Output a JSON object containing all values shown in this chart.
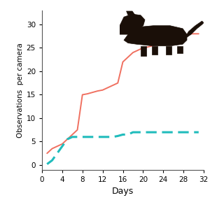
{
  "red_line": {
    "x": [
      1,
      2,
      3,
      4,
      5,
      6,
      7,
      8,
      9,
      10,
      11,
      12,
      13,
      14,
      15,
      16,
      17,
      18,
      19,
      20,
      21,
      22,
      23,
      24,
      25,
      26,
      27,
      28,
      29,
      30,
      31
    ],
    "y": [
      2.5,
      3.5,
      4.0,
      4.5,
      5.5,
      6.5,
      7.5,
      15.0,
      15.2,
      15.5,
      15.8,
      16.0,
      16.5,
      17.0,
      17.5,
      22.0,
      23.0,
      24.0,
      24.5,
      25.0,
      25.2,
      25.5,
      25.8,
      26.0,
      26.5,
      27.0,
      27.2,
      27.5,
      28.0,
      28.0,
      28.0
    ]
  },
  "cyan_line": {
    "x": [
      1,
      2,
      3,
      4,
      5,
      6,
      7,
      8,
      9,
      10,
      11,
      12,
      13,
      14,
      15,
      16,
      17,
      18,
      19,
      20,
      21,
      22,
      23,
      24,
      25,
      26,
      27,
      28,
      29,
      30,
      31
    ],
    "y": [
      0.2,
      1.0,
      2.5,
      4.0,
      5.5,
      6.0,
      6.0,
      6.0,
      6.0,
      6.0,
      6.0,
      6.0,
      6.0,
      6.0,
      6.2,
      6.5,
      6.5,
      7.0,
      7.0,
      7.0,
      7.0,
      7.0,
      7.0,
      7.0,
      7.0,
      7.0,
      7.0,
      7.0,
      7.0,
      7.0,
      7.0
    ]
  },
  "red_color": "#F07060",
  "cyan_color": "#20BCBC",
  "xlabel": "Days",
  "ylabel": "Observations  per camera",
  "xlim": [
    0,
    32
  ],
  "ylim": [
    -1,
    33
  ],
  "xticks": [
    0,
    4,
    8,
    12,
    16,
    20,
    24,
    28,
    32
  ],
  "yticks": [
    0,
    5,
    10,
    15,
    20,
    25,
    30
  ],
  "bg_color": "#ffffff",
  "linewidth_red": 1.4,
  "linewidth_cyan": 2.2,
  "stoat_color": "#1a0f08",
  "stoat_axes": [
    0.57,
    0.68,
    0.4,
    0.28
  ]
}
